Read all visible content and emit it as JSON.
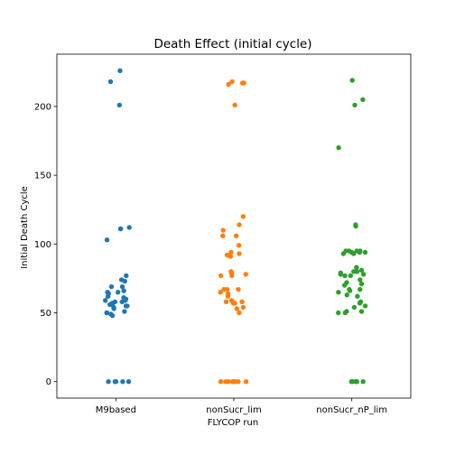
{
  "chart_data": {
    "type": "scatter",
    "subtype": "strip",
    "title": "Death Effect (initial cycle)",
    "xlabel": "FLYCOP run",
    "ylabel": "Initial Death Cycle",
    "categories": [
      "M9based",
      "nonSucr_lim",
      "nonSucr_nP_lim"
    ],
    "ylim": [
      -12,
      238
    ],
    "yticks": [
      0,
      50,
      100,
      150,
      200
    ],
    "grid": false,
    "legend": "none",
    "colors": [
      "#1f77b4",
      "#ff7f0e",
      "#2ca02c"
    ],
    "series": [
      {
        "category": "M9based",
        "values": [
          226,
          218,
          201,
          112,
          111,
          111,
          103,
          77,
          74,
          73,
          69,
          69,
          66,
          65,
          65,
          64,
          62,
          61,
          60,
          59,
          59,
          58,
          58,
          57,
          56,
          56,
          55,
          55,
          54,
          53,
          51,
          50,
          50,
          49,
          48,
          0,
          0,
          0,
          0,
          0
        ]
      },
      {
        "category": "nonSucr_lim",
        "values": [
          218,
          217,
          217,
          216,
          201,
          120,
          114,
          110,
          106,
          106,
          99,
          94,
          93,
          92,
          91,
          80,
          79,
          78,
          77,
          77,
          67,
          67,
          67,
          65,
          64,
          62,
          59,
          58,
          58,
          57,
          57,
          54,
          53,
          50,
          0,
          0,
          0,
          0,
          0,
          0,
          0,
          0,
          0
        ]
      },
      {
        "category": "nonSucr_nP_lim",
        "values": [
          219,
          205,
          201,
          170,
          114,
          113,
          95,
          95,
          95,
          95,
          94,
          94,
          94,
          93,
          93,
          83,
          81,
          80,
          80,
          79,
          78,
          78,
          77,
          77,
          74,
          72,
          71,
          70,
          67,
          67,
          66,
          65,
          63,
          62,
          58,
          57,
          55,
          54,
          51,
          51,
          50,
          50,
          0,
          0,
          0,
          0,
          0,
          0,
          0,
          0
        ]
      }
    ]
  }
}
